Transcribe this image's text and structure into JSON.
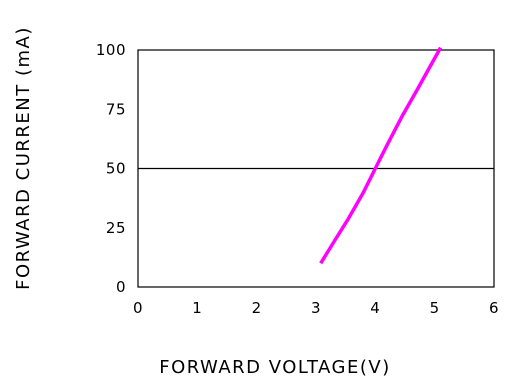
{
  "chart_data": {
    "type": "line",
    "xlabel": "FORWARD VOLTAGE(V)",
    "ylabel": "FORWARD CURRENT (mA)",
    "xlim": [
      0,
      6
    ],
    "ylim": [
      0,
      100
    ],
    "x_ticks": [
      0,
      1,
      2,
      3,
      4,
      5,
      6
    ],
    "y_ticks": [
      0,
      25,
      50,
      75,
      100
    ],
    "gridlines_y": [
      50
    ],
    "grid": false,
    "legend": "none",
    "series": [
      {
        "color": "#ff00ff",
        "x": [
          3.08,
          3.3,
          3.55,
          3.8,
          4.0,
          4.2,
          4.45,
          4.7,
          4.9,
          5.1
        ],
        "y": [
          10,
          19,
          29,
          40,
          50,
          60,
          72,
          83,
          92,
          101
        ]
      }
    ]
  }
}
